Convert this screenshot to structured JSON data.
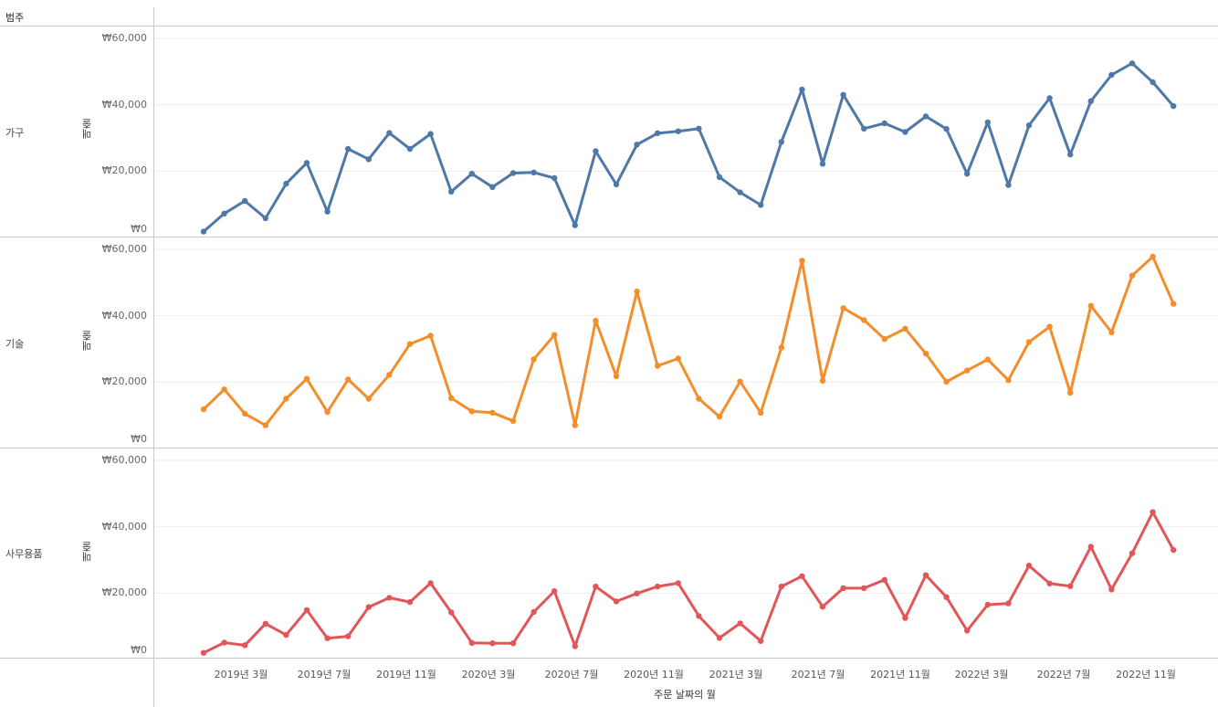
{
  "header": {
    "label": "범주"
  },
  "measure_label": "매출",
  "chart_data": {
    "type": "line",
    "x_title": "주문 날짜의 월",
    "x_tick_labels": [
      "2019년 3월",
      "2019년 7월",
      "2019년 11월",
      "2020년 3월",
      "2020년 7월",
      "2020년 11월",
      "2021년 3월",
      "2021년 7월",
      "2021년 11월",
      "2022년 3월",
      "2022년 7월",
      "2022년 11월"
    ],
    "x_months": [
      "2019-01",
      "2019-02",
      "2019-03",
      "2019-04",
      "2019-05",
      "2019-06",
      "2019-07",
      "2019-08",
      "2019-09",
      "2019-10",
      "2019-11",
      "2019-12",
      "2020-01",
      "2020-02",
      "2020-03",
      "2020-04",
      "2020-05",
      "2020-06",
      "2020-07",
      "2020-08",
      "2020-09",
      "2020-10",
      "2020-11",
      "2020-12",
      "2021-01",
      "2021-02",
      "2021-03",
      "2021-04",
      "2021-05",
      "2021-06",
      "2021-07",
      "2021-08",
      "2021-09",
      "2021-10",
      "2021-11",
      "2021-12",
      "2022-01",
      "2022-02",
      "2022-03",
      "2022-04",
      "2022-05",
      "2022-06",
      "2022-07",
      "2022-08",
      "2022-09",
      "2022-10",
      "2022-11",
      "2022-12"
    ],
    "y_tick_labels": [
      "₩60,000",
      "₩40,000",
      "₩20,000",
      "₩0"
    ],
    "ylim": [
      0,
      60000
    ],
    "series": [
      {
        "name": "가구",
        "color": "#4e79a7",
        "values": [
          1800,
          7200,
          11000,
          5800,
          16200,
          22500,
          7800,
          26700,
          23600,
          31500,
          26700,
          31200,
          13800,
          19200,
          15200,
          19400,
          19600,
          17900,
          3700,
          26000,
          16000,
          28000,
          31400,
          32000,
          32800,
          18200,
          13600,
          9800,
          28800,
          44600,
          22200,
          43000,
          32800,
          34400,
          31800,
          36500,
          32700,
          19200,
          34700,
          15800,
          33800,
          42000,
          25000,
          41100,
          49000,
          52500,
          46800,
          39600
        ]
      },
      {
        "name": "기술",
        "color": "#f28e2b",
        "values": [
          11800,
          17800,
          10500,
          7000,
          15000,
          21000,
          11000,
          20800,
          15000,
          22200,
          31500,
          34000,
          15200,
          11200,
          10800,
          8300,
          26900,
          34200,
          7000,
          38500,
          21800,
          47300,
          24900,
          27100,
          15000,
          9600,
          20200,
          10800,
          30400,
          56600,
          20400,
          42300,
          38700,
          33000,
          36100,
          28600,
          20100,
          23500,
          26800,
          20600,
          32100,
          36700,
          16800,
          43000,
          35000,
          52100,
          57800,
          43600
        ]
      },
      {
        "name": "사무용품",
        "color": "#e15759",
        "values": [
          2000,
          5100,
          4300,
          10800,
          7400,
          14900,
          6400,
          7000,
          15800,
          18600,
          17300,
          23000,
          14200,
          5000,
          4900,
          4900,
          14300,
          20600,
          4000,
          22000,
          17500,
          19900,
          22000,
          23000,
          13100,
          6500,
          10900,
          5600,
          22000,
          25100,
          15900,
          21500,
          21500,
          24000,
          12500,
          25400,
          18800,
          8700,
          16500,
          16900,
          28300,
          22900,
          22100,
          34000,
          21100,
          32000,
          44400,
          33000
        ]
      }
    ]
  }
}
